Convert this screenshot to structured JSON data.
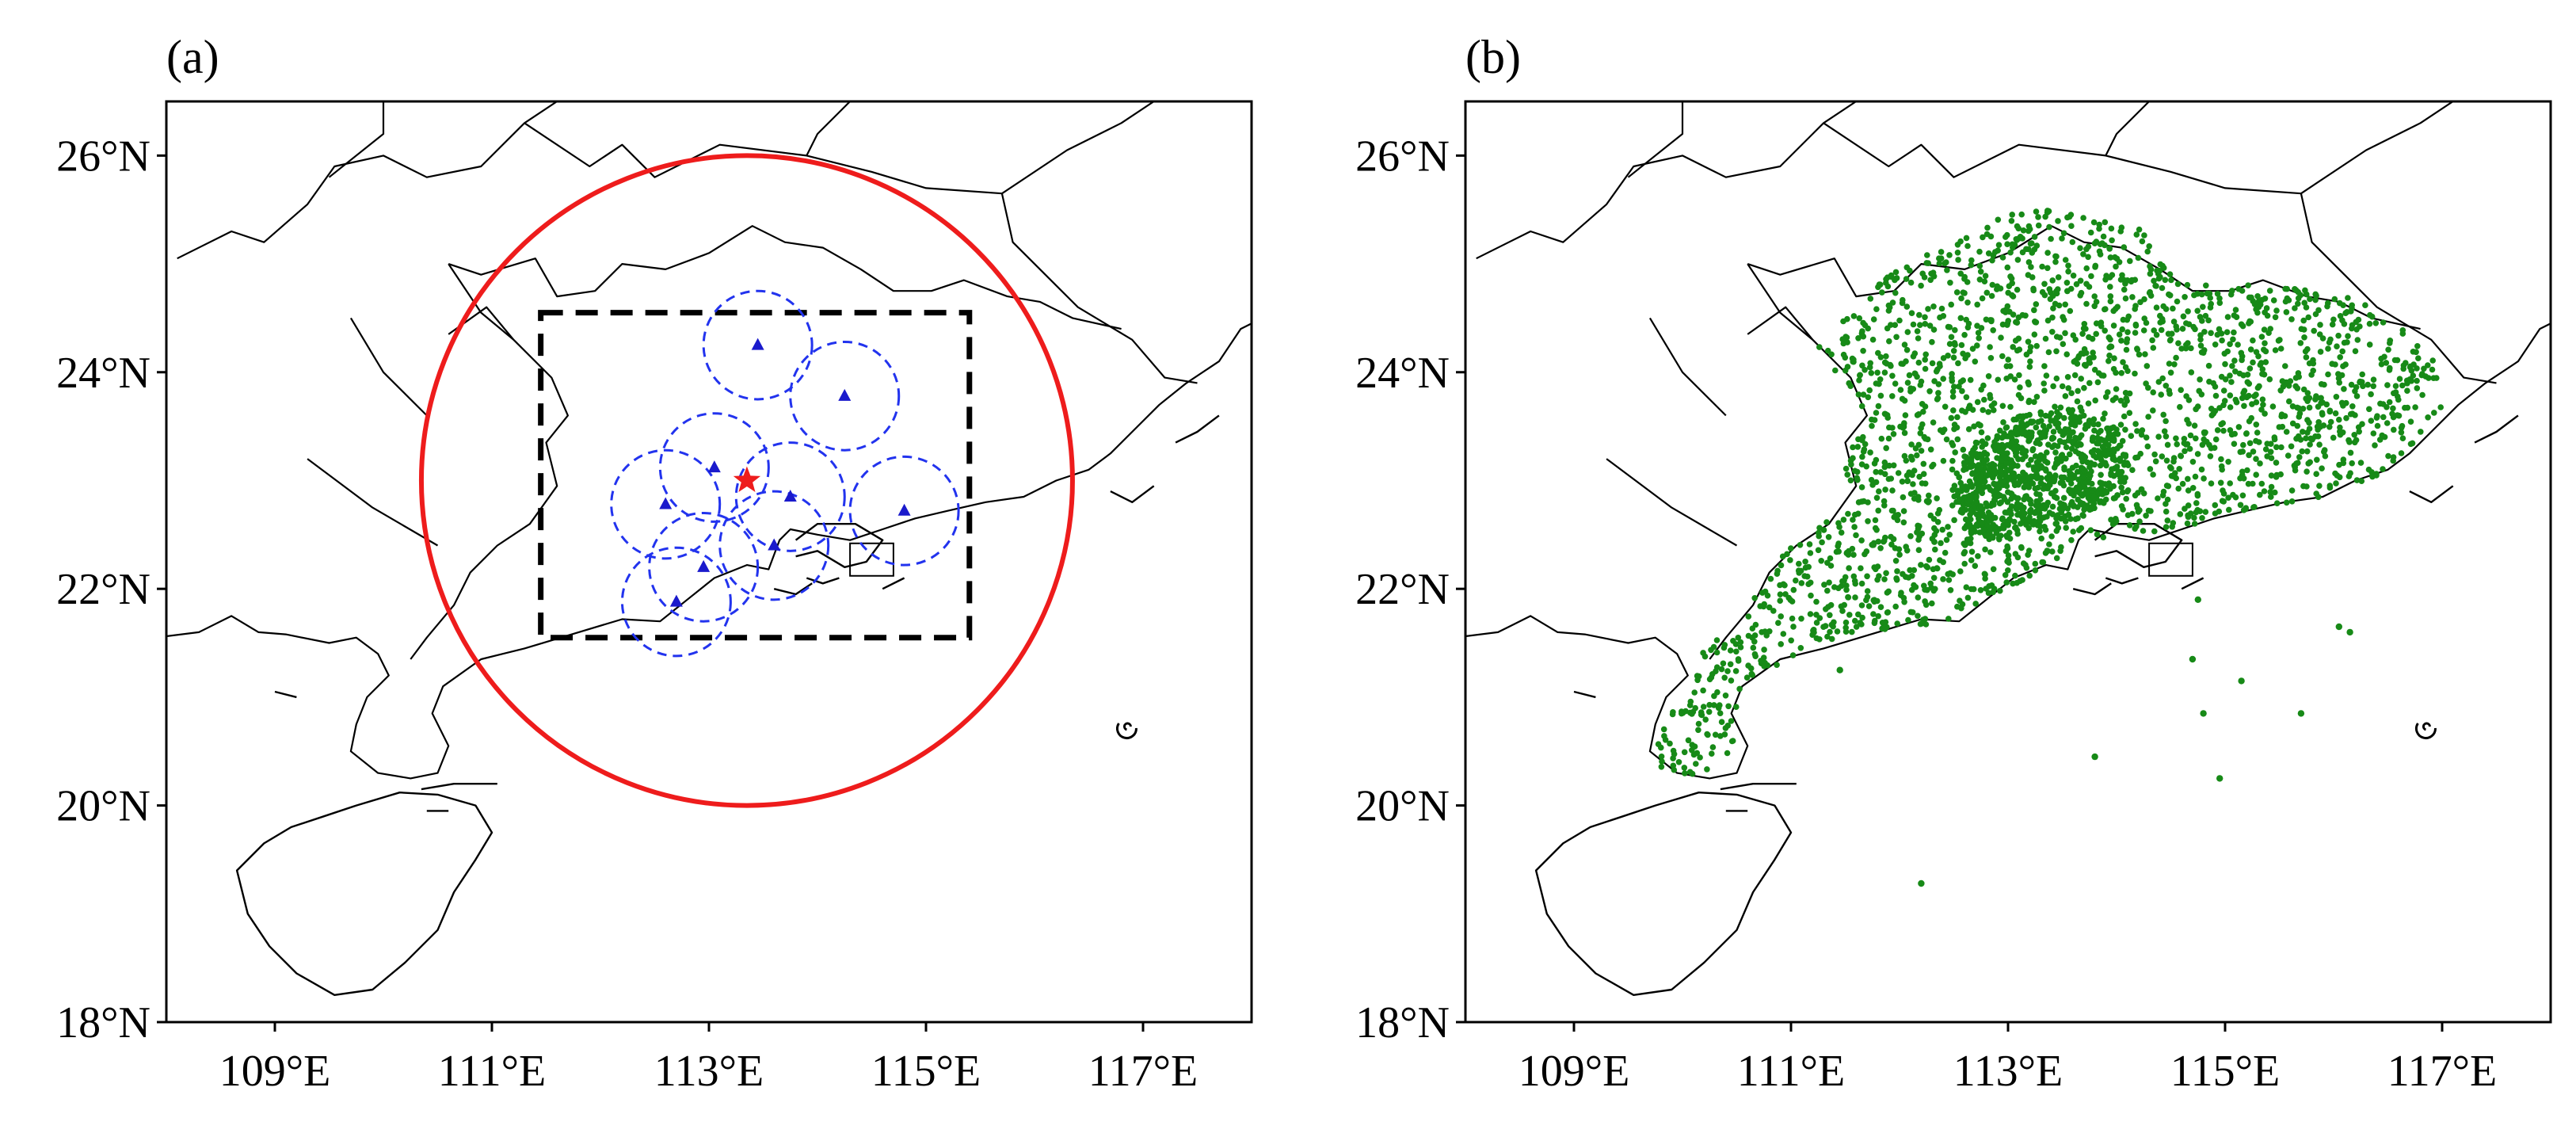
{
  "panels": [
    {
      "label": "(a)",
      "y_ticks": [
        "26°N",
        "24°N",
        "22°N",
        "20°N",
        "18°N"
      ],
      "x_ticks": [
        "109°E",
        "111°E",
        "113°E",
        "115°E",
        "117°E"
      ]
    },
    {
      "label": "(b)",
      "y_ticks": [
        "26°N",
        "24°N",
        "22°N",
        "20°N",
        "18°N"
      ],
      "x_ticks": [
        "109°E",
        "111°E",
        "113°E",
        "115°E",
        "117°E"
      ]
    }
  ],
  "map_extent": {
    "lon": [
      108.0,
      118.0
    ],
    "lat": [
      18.0,
      26.5
    ]
  },
  "colors": {
    "big_circle": "#ee1c1c",
    "small_circles": "#2233ee",
    "stations": "#1a1acc",
    "center_star": "#ee1c1c",
    "box": "#000000",
    "dots": "#178a17"
  },
  "chart_data": [
    {
      "type": "scatter",
      "panel": "a",
      "center_star": {
        "lon": 113.35,
        "lat": 23.0
      },
      "big_circle": {
        "lon": 113.35,
        "lat": 23.0,
        "radius_deg": 3.0
      },
      "dashed_box": {
        "lon": [
          111.45,
          115.4
        ],
        "lat": [
          21.55,
          24.55
        ]
      },
      "stations": [
        {
          "lon": 113.45,
          "lat": 24.25
        },
        {
          "lon": 114.25,
          "lat": 23.78
        },
        {
          "lon": 113.05,
          "lat": 23.12
        },
        {
          "lon": 112.6,
          "lat": 22.78
        },
        {
          "lon": 113.75,
          "lat": 22.85
        },
        {
          "lon": 114.8,
          "lat": 22.72
        },
        {
          "lon": 113.6,
          "lat": 22.4
        },
        {
          "lon": 112.95,
          "lat": 22.2
        },
        {
          "lon": 112.7,
          "lat": 21.88
        }
      ],
      "station_circle_radius_deg": 0.5
    },
    {
      "type": "scatter",
      "panel": "b",
      "n_dots": 3000,
      "offshore_points": [
        {
          "lon": 114.75,
          "lat": 21.9
        },
        {
          "lon": 114.7,
          "lat": 21.35
        },
        {
          "lon": 115.15,
          "lat": 21.15
        },
        {
          "lon": 114.8,
          "lat": 20.85
        },
        {
          "lon": 115.7,
          "lat": 20.85
        },
        {
          "lon": 113.8,
          "lat": 20.45
        },
        {
          "lon": 114.95,
          "lat": 20.25
        },
        {
          "lon": 112.2,
          "lat": 19.28
        },
        {
          "lon": 116.05,
          "lat": 21.65
        },
        {
          "lon": 116.15,
          "lat": 21.6
        },
        {
          "lon": 111.45,
          "lat": 21.25
        }
      ]
    }
  ]
}
